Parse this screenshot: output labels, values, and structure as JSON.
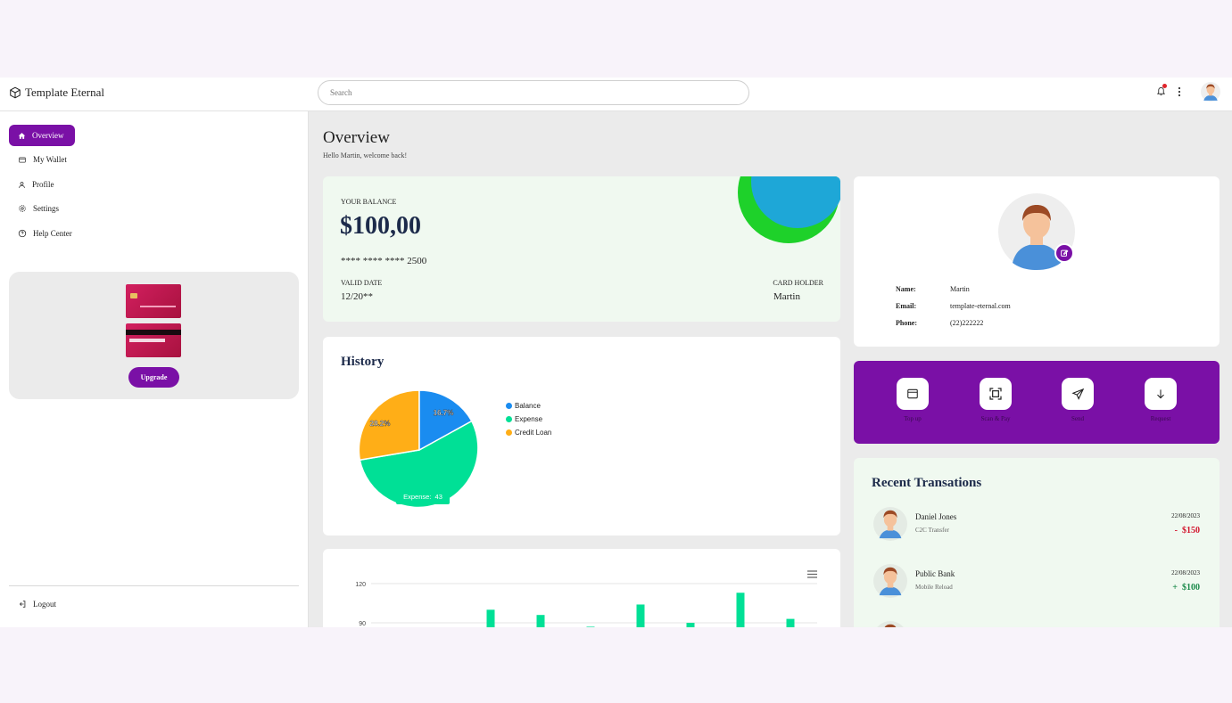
{
  "header": {
    "brand": "Template Eternal",
    "search_placeholder": "Search"
  },
  "sidebar": {
    "items": [
      {
        "label": "Overview",
        "icon": "home-icon",
        "active": true
      },
      {
        "label": "My Wallet",
        "icon": "wallet-icon"
      },
      {
        "label": "Profile",
        "icon": "user-icon"
      },
      {
        "label": "Settings",
        "icon": "gear-icon"
      },
      {
        "label": "Help Center",
        "icon": "help-icon"
      }
    ],
    "upgrade_label": "Upgrade",
    "logout_label": "Logout"
  },
  "main": {
    "title": "Overview",
    "subtitle": "Hello Martin, welcome back!"
  },
  "balance_card": {
    "label": "YOUR BALANCE",
    "amount": "$100,00",
    "card_number": "**** **** **** 2500",
    "valid_label": "VALID DATE",
    "valid_value": "12/20**",
    "holder_label": "CARD HOLDER",
    "holder_value": "Martin"
  },
  "profile": {
    "name_label": "Name:",
    "name": "Martin",
    "email_label": "Email:",
    "email": "template-eternal.com",
    "phone_label": "Phone:",
    "phone": "(22)222222"
  },
  "actions": [
    {
      "label": "Top up",
      "icon": "wallet-icon"
    },
    {
      "label": "Scan & Pay",
      "icon": "scan-icon"
    },
    {
      "label": "Send",
      "icon": "send-icon"
    },
    {
      "label": "Request",
      "icon": "arrow-down-icon"
    }
  ],
  "history": {
    "title": "History",
    "legend": [
      {
        "label": "Balance",
        "color": "#1a8cf0"
      },
      {
        "label": "Expense",
        "color": "#00e096"
      },
      {
        "label": "Credit Loan",
        "color": "#ffae17"
      }
    ],
    "balance_pct_label": "16.7%",
    "credit_pct_label": "28.2%",
    "tooltip": "Expense:  43"
  },
  "chart_data": {
    "type": "bar",
    "yticks": [
      120,
      90
    ],
    "ylim": [
      0,
      120
    ],
    "values": [
      100,
      96,
      87,
      104,
      90,
      113,
      93
    ],
    "color": "#00e096"
  },
  "recent": {
    "title": "Recent Transations",
    "items": [
      {
        "name": "Daniel Jones",
        "desc": "C2C Transfer",
        "date": "22/08/2023",
        "amount": "-  $150",
        "color": "#d2132b"
      },
      {
        "name": "Public Bank",
        "desc": "Mobile Reload",
        "date": "22/08/2023",
        "amount": "+  $100",
        "color": "#1a8a4a"
      }
    ]
  }
}
